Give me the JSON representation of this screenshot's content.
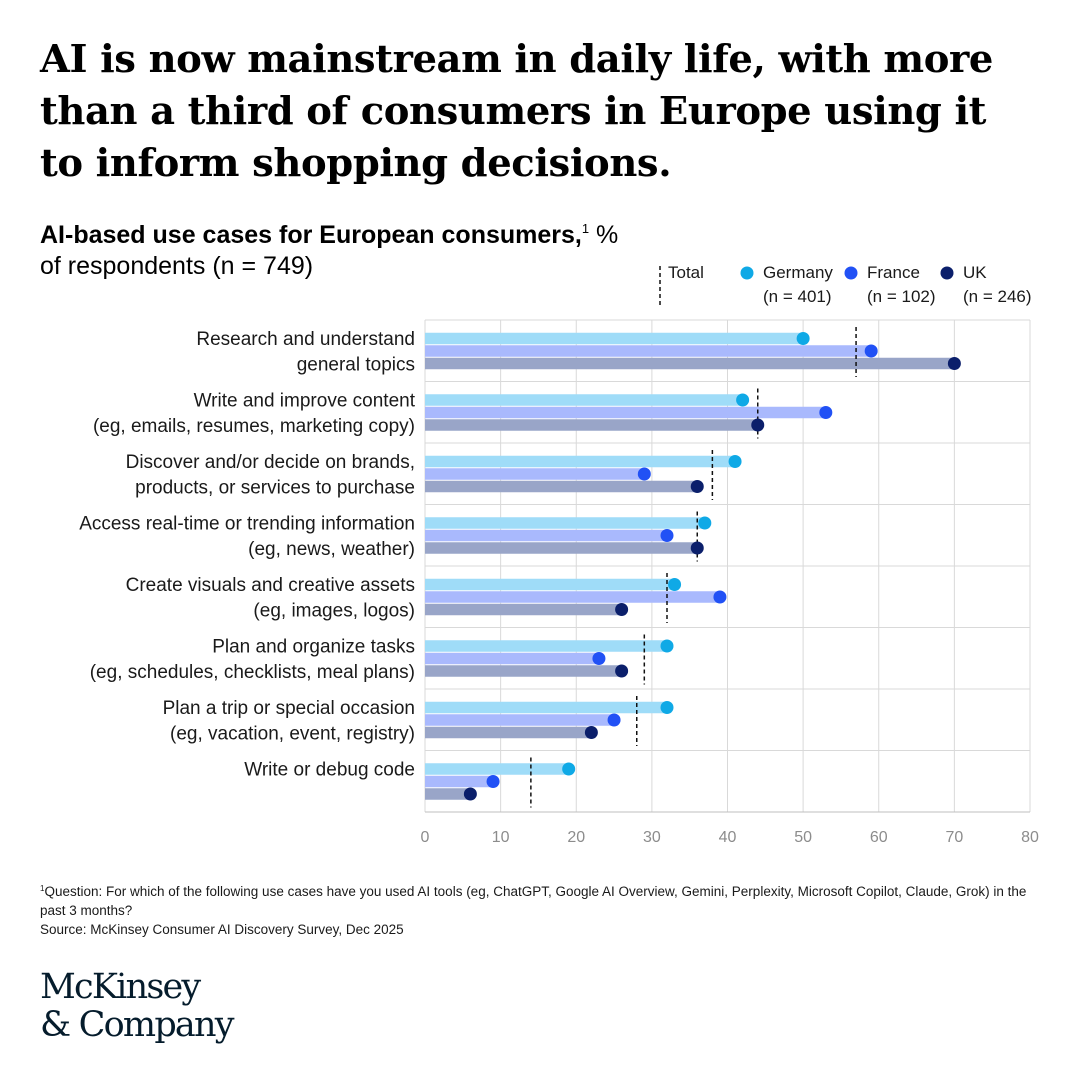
{
  "headline": "AI is now mainstream in daily life, with more than a third of consumers in Europe using it to inform shopping decisions.",
  "subtitle": {
    "bold": "AI-based use cases for European consumers,",
    "footnote_ref": "1",
    "rest": "% of respondents (n = 749)"
  },
  "chart_data": {
    "type": "bar",
    "orientation": "horizontal",
    "categories": [
      [
        "Research and understand",
        "general topics"
      ],
      [
        "Write and improve content",
        "(eg, emails, resumes, marketing copy)"
      ],
      [
        "Discover and/or decide on brands,",
        "products, or services to purchase"
      ],
      [
        "Access real-time or trending information",
        "(eg, news, weather)"
      ],
      [
        "Create visuals and creative assets",
        "(eg, images, logos)"
      ],
      [
        "Plan and organize tasks",
        "(eg, schedules, checklists, meal plans)"
      ],
      [
        "Plan a trip or special occasion",
        "(eg, vacation, event, registry)"
      ],
      [
        "Write or debug code"
      ]
    ],
    "series": [
      {
        "name": "Germany",
        "n_label": "(n = 401)",
        "bar_color": "#9fdcf8",
        "dot_color": "#0fa9e6",
        "values": [
          50,
          42,
          41,
          37,
          33,
          32,
          32,
          19
        ]
      },
      {
        "name": "France",
        "n_label": "(n = 102)",
        "bar_color": "#a9b9fd",
        "dot_color": "#2151f5",
        "values": [
          59,
          53,
          29,
          32,
          39,
          23,
          25,
          9
        ]
      },
      {
        "name": "UK",
        "n_label": "(n = 246)",
        "bar_color": "#99a5c8",
        "dot_color": "#0b1f6b",
        "values": [
          70,
          44,
          36,
          36,
          26,
          26,
          22,
          6
        ]
      }
    ],
    "total": {
      "name": "Total",
      "values": [
        57,
        44,
        38,
        36,
        32,
        29,
        28,
        14
      ]
    },
    "xlim": [
      0,
      80
    ],
    "xticks": [
      0,
      10,
      20,
      30,
      40,
      50,
      60,
      70,
      80
    ],
    "grid": true,
    "legend_position": "top-right"
  },
  "footnotes": [
    "Question: For which of the following use cases have you used AI tools (eg, ChatGPT, Google AI Overview, Gemini, Perplexity, Microsoft Copilot, Claude, Grok) in the past 3 months?",
    "Source: McKinsey Consumer AI Discovery Survey, Dec 2025"
  ],
  "footnote_mark": "1",
  "logo": {
    "line1": "McKinsey",
    "line2": "& Company"
  }
}
